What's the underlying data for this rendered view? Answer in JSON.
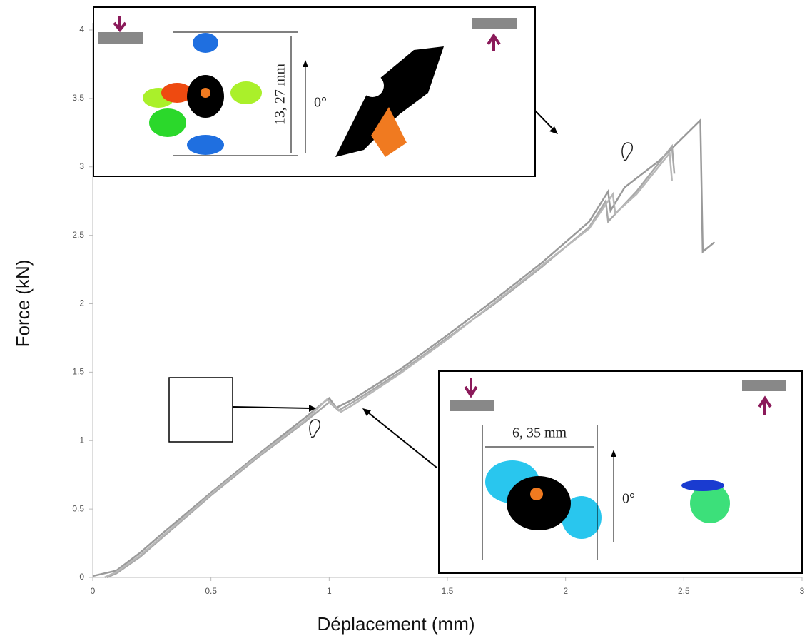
{
  "chart_data": {
    "type": "line",
    "x_label": "Déplacement (mm)",
    "y_label": "Force (kN)",
    "xlim": [
      0,
      3
    ],
    "ylim": [
      0,
      4
    ],
    "xticks": [
      0,
      0.5,
      1,
      1.5,
      2,
      2.5,
      3
    ],
    "yticks": [
      0,
      0.5,
      1,
      1.5,
      2,
      2.5,
      3,
      3.5,
      4
    ],
    "series": [
      {
        "color": "#9a9a9a",
        "x": [
          0,
          0.1,
          0.2,
          0.3,
          0.5,
          0.7,
          0.9,
          0.97,
          1.0,
          1.03,
          1.1,
          1.3,
          1.5,
          1.7,
          1.9,
          2.1,
          2.18,
          2.19,
          2.25,
          2.4,
          2.57,
          2.58,
          2.63
        ],
        "values": [
          0.01,
          0.05,
          0.18,
          0.33,
          0.62,
          0.9,
          1.17,
          1.27,
          1.31,
          1.24,
          1.3,
          1.52,
          1.77,
          2.03,
          2.3,
          2.6,
          2.82,
          2.68,
          2.85,
          3.05,
          3.34,
          2.38,
          2.45
        ]
      },
      {
        "color": "#a8a8a8",
        "x": [
          0.06,
          0.1,
          0.2,
          0.3,
          0.5,
          0.7,
          0.9,
          1.0,
          1.04,
          1.1,
          1.3,
          1.5,
          1.7,
          1.9,
          2.1,
          2.17,
          2.18,
          2.3,
          2.45,
          2.46
        ],
        "values": [
          0,
          0.03,
          0.15,
          0.3,
          0.6,
          0.88,
          1.14,
          1.28,
          1.22,
          1.28,
          1.5,
          1.75,
          2.0,
          2.27,
          2.56,
          2.75,
          2.6,
          2.82,
          3.15,
          2.95
        ]
      },
      {
        "color": "#b8b8b8",
        "x": [
          0.05,
          0.1,
          0.2,
          0.3,
          0.5,
          0.7,
          0.9,
          0.99,
          1.05,
          1.1,
          1.3,
          1.5,
          1.7,
          1.9,
          2.1,
          2.2,
          2.21,
          2.3,
          2.44,
          2.45
        ],
        "values": [
          0,
          0.04,
          0.16,
          0.31,
          0.61,
          0.89,
          1.15,
          1.3,
          1.21,
          1.26,
          1.49,
          1.74,
          2.01,
          2.28,
          2.55,
          2.8,
          2.66,
          2.8,
          3.1,
          2.9
        ]
      }
    ]
  },
  "insets": {
    "top": {
      "dimension": "13, 27 mm",
      "angle": "0°"
    },
    "bottom": {
      "dimension": "6, 35 mm",
      "angle": "0°"
    }
  }
}
